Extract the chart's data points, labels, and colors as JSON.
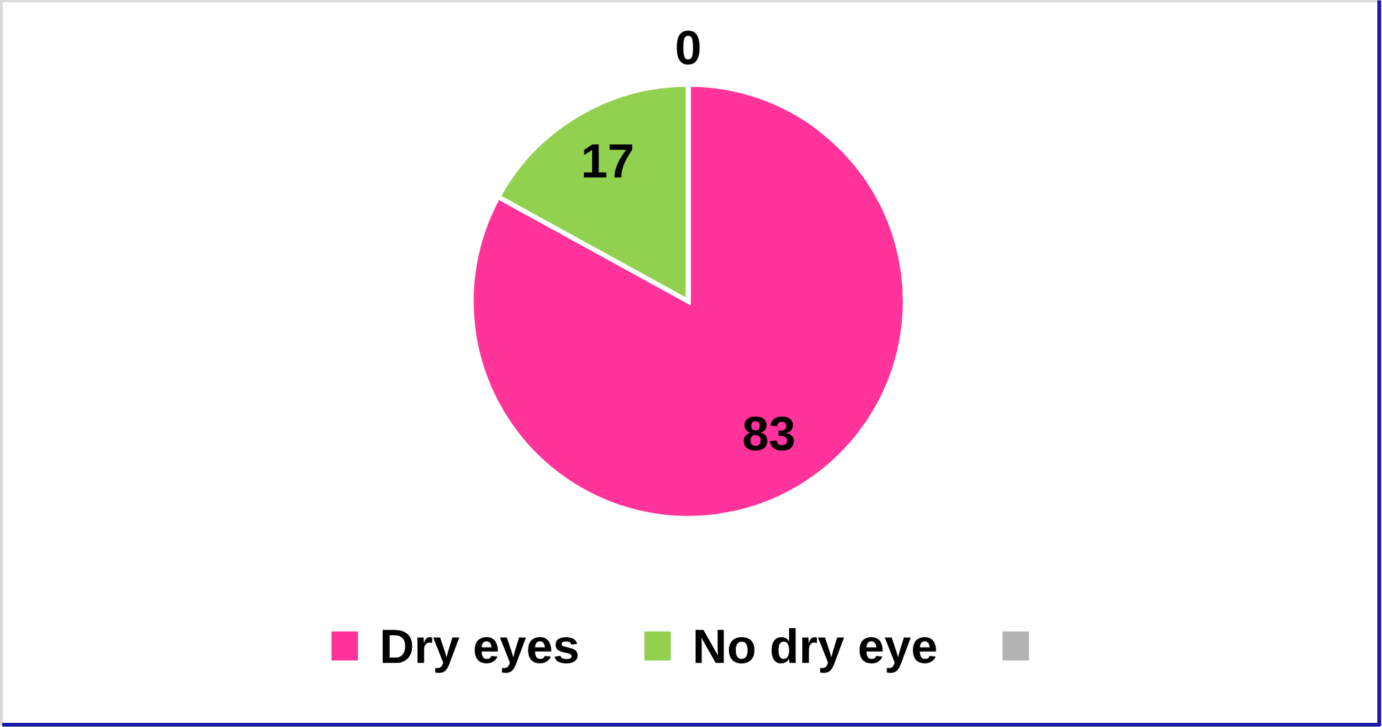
{
  "chart_data": {
    "type": "pie",
    "categories": [
      "Dry eyes",
      "No dry eye",
      null
    ],
    "values": [
      83,
      17,
      0
    ],
    "value_labels": [
      "83",
      "17",
      "0"
    ],
    "colors": [
      "#ff3399",
      "#92d050",
      "#b3b3b3"
    ],
    "legend": "bottom"
  }
}
